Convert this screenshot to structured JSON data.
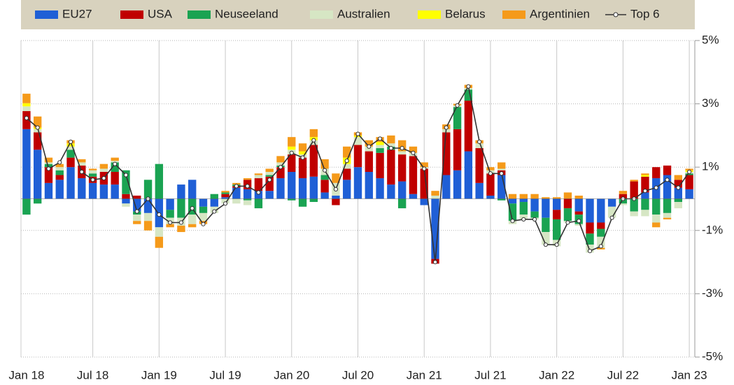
{
  "chart_data": {
    "type": "bar",
    "categories": [
      "Jan 18",
      null,
      null,
      null,
      null,
      null,
      "Jul 18",
      null,
      null,
      null,
      null,
      null,
      "Jan 19",
      null,
      null,
      null,
      null,
      null,
      "Jul 19",
      null,
      null,
      null,
      null,
      null,
      "Jan 20",
      null,
      null,
      null,
      null,
      null,
      "Jul 20",
      null,
      null,
      null,
      null,
      null,
      "Jan 21",
      null,
      null,
      null,
      null,
      null,
      "Jul 21",
      null,
      null,
      null,
      null,
      null,
      "Jan 22",
      null,
      null,
      null,
      null,
      null,
      "Jul 22",
      null,
      null,
      null,
      null,
      null,
      "Jan 23"
    ],
    "series": [
      {
        "name": "EU27",
        "color": "#1f5fd6",
        "values": [
          2.2,
          1.55,
          0.5,
          0.6,
          1.0,
          0.65,
          0.5,
          0.45,
          0.45,
          -0.15,
          -0.4,
          -0.45,
          -0.9,
          -0.35,
          0.45,
          0.6,
          -0.25,
          -0.25,
          0.05,
          0.35,
          0.3,
          0.25,
          0.25,
          0.65,
          0.85,
          0.65,
          0.7,
          0.2,
          0.1,
          0.6,
          1.0,
          0.85,
          0.65,
          0.45,
          0.55,
          0.15,
          -0.2,
          -1.9,
          0.75,
          0.9,
          1.5,
          0.5,
          0.1,
          0.75,
          -0.15,
          -0.1,
          -0.4,
          -0.6,
          -0.35,
          0,
          -0.4,
          -0.75,
          -0.75,
          -0.25,
          0,
          0,
          0.2,
          0.65,
          0.75,
          0.35,
          0.3
        ]
      },
      {
        "name": "USA",
        "color": "#c00000",
        "values": [
          0.57,
          0.55,
          0.5,
          0.15,
          0.3,
          0.4,
          0.2,
          0.4,
          0.4,
          0.15,
          0.1,
          0,
          0,
          0,
          0,
          0,
          0,
          0,
          0.1,
          0.05,
          0.3,
          0.4,
          0.45,
          0.35,
          0.55,
          0.65,
          1.0,
          0.4,
          -0.2,
          0.35,
          0.7,
          0.65,
          0.8,
          1.1,
          0.85,
          1.2,
          0.95,
          -0.15,
          1.35,
          1.3,
          1.6,
          1.1,
          0.7,
          0.15,
          0,
          0,
          0,
          0,
          -0.3,
          -0.3,
          -0.1,
          -0.35,
          -0.2,
          0,
          0.15,
          0.55,
          0.5,
          0.35,
          0.3,
          0.25,
          0.45
        ]
      },
      {
        "name": "Neuseeland",
        "color": "#1aa352",
        "values": [
          -0.5,
          -0.15,
          0.1,
          0.15,
          0.25,
          0,
          0.1,
          0,
          0.3,
          0.75,
          -0.1,
          0.6,
          1.1,
          -0.25,
          -0.6,
          -0.5,
          -0.2,
          0.15,
          0.05,
          0.05,
          -0.05,
          -0.3,
          0.05,
          0.05,
          -0.05,
          -0.25,
          -0.1,
          0.15,
          0,
          0,
          0,
          0,
          0.15,
          0.1,
          -0.3,
          0,
          0,
          0,
          0,
          0.7,
          0.35,
          0,
          0,
          -0.05,
          -0.55,
          -0.4,
          -0.2,
          -0.45,
          -0.65,
          -0.4,
          -0.3,
          -0.35,
          -0.25,
          0,
          -0.15,
          -0.4,
          -0.35,
          -0.5,
          -0.45,
          -0.1,
          0.05
        ]
      },
      {
        "name": "Australien",
        "color": "#d6e6c4",
        "values": [
          0.15,
          0.1,
          0.05,
          0.1,
          0.1,
          0.1,
          0.1,
          0.1,
          0.05,
          -0.1,
          -0.2,
          -0.25,
          -0.3,
          -0.2,
          -0.25,
          -0.3,
          -0.25,
          -0.2,
          -0.15,
          -0.15,
          -0.15,
          0.1,
          0.1,
          0.1,
          0.15,
          0.1,
          0.15,
          0.2,
          0.4,
          0.15,
          0.25,
          0.15,
          0.1,
          0.1,
          0.1,
          0.1,
          0.05,
          0.1,
          0.1,
          0.05,
          0.05,
          0.15,
          0.1,
          0.05,
          -0.1,
          -0.15,
          -0.05,
          -0.4,
          -0.2,
          -0.05,
          -0.05,
          -0.25,
          -0.35,
          -0.35,
          -0.05,
          -0.15,
          -0.2,
          -0.25,
          -0.15,
          -0.2,
          0.05
        ]
      },
      {
        "name": "Belarus",
        "color": "#ffff00",
        "values": [
          0.1,
          0.05,
          0,
          0,
          0.1,
          0,
          0,
          0,
          0,
          0,
          0,
          0,
          0,
          0,
          0,
          0,
          0,
          0,
          0,
          0,
          0,
          0,
          0,
          0,
          0.1,
          0.1,
          0.1,
          0,
          0,
          0.2,
          0.05,
          0,
          0.1,
          0,
          0,
          0,
          0,
          0,
          0,
          0,
          0,
          0,
          0,
          0,
          0,
          0,
          0,
          0,
          0,
          0,
          0,
          0,
          0,
          0,
          0,
          0,
          0.05,
          0,
          0,
          0,
          0.05
        ]
      },
      {
        "name": "Argentinien",
        "color": "#f59a1a",
        "values": [
          0.3,
          0.35,
          0.15,
          0.1,
          0.1,
          0.1,
          0.05,
          0.15,
          0.1,
          0,
          -0.1,
          -0.3,
          -0.35,
          -0.1,
          -0.2,
          -0.1,
          -0.1,
          0,
          0.05,
          0.05,
          0.05,
          0.05,
          0.1,
          0.2,
          0.3,
          0.25,
          0.25,
          0.3,
          0.3,
          0.35,
          0.1,
          0.2,
          0.15,
          0.25,
          0.35,
          0.2,
          0.15,
          0.15,
          0.15,
          0.05,
          0.1,
          0.1,
          0.1,
          0.2,
          0.15,
          0.15,
          0.15,
          0.05,
          0.05,
          0.2,
          0.1,
          0,
          -0.05,
          0,
          0.1,
          0.05,
          0.05,
          -0.15,
          -0.05,
          0.15,
          0.05
        ]
      },
      {
        "name": "Top 6",
        "type": "line",
        "color": "#333333",
        "values": [
          2.55,
          2.25,
          0.95,
          1.15,
          1.8,
          0.85,
          0.6,
          0.65,
          1.1,
          0.75,
          -0.4,
          0,
          -0.5,
          -0.75,
          -0.75,
          -0.3,
          -0.8,
          -0.4,
          -0.15,
          0.4,
          0.4,
          0.2,
          0.6,
          1.0,
          1.45,
          1.3,
          1.85,
          0.9,
          0.3,
          1.2,
          2.05,
          1.65,
          1.9,
          1.6,
          1.6,
          1.45,
          0.95,
          -2.0,
          2.25,
          2.95,
          3.55,
          1.8,
          0.8,
          0.8,
          -0.7,
          -0.65,
          -0.65,
          -1.45,
          -1.45,
          -0.75,
          -0.7,
          -1.65,
          -1.5,
          -0.6,
          0,
          0,
          0.25,
          0.35,
          0.6,
          0.35,
          0.85
        ]
      }
    ],
    "ylim": [
      -5,
      5
    ],
    "yticks": [
      {
        "value": 5,
        "label": "5%"
      },
      {
        "value": 3,
        "label": "3%"
      },
      {
        "value": 1,
        "label": "1%"
      },
      {
        "value": -1,
        "label": "-1%"
      },
      {
        "value": -3,
        "label": "-3%"
      },
      {
        "value": -5,
        "label": "-5%"
      }
    ],
    "grid": true
  }
}
